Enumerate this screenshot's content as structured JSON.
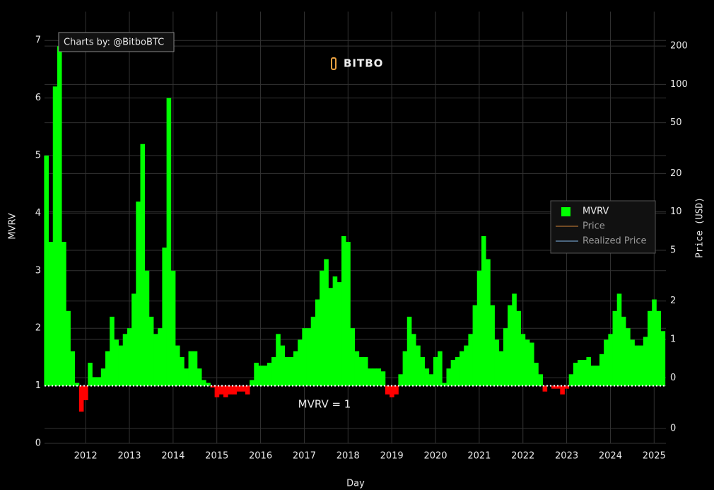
{
  "chart_data": {
    "type": "bar",
    "credit": "Charts by: @BitboBTC",
    "watermark": "BITBO",
    "xlabel": "Day",
    "ylabel": "MVRV",
    "y2label": "Price (USD)",
    "xlim": [
      2011.06,
      2025.27
    ],
    "xticks": [
      2012,
      2013,
      2014,
      2015,
      2016,
      2017,
      2018,
      2019,
      2020,
      2021,
      2022,
      2023,
      2024,
      2025
    ],
    "ylim": [
      0,
      7.5
    ],
    "yticks": [
      0,
      1,
      2,
      3,
      4,
      5,
      6,
      7
    ],
    "y2lim": [
      0.153,
      372
    ],
    "y2log": true,
    "y2ticks": [
      {
        "value": 0.2,
        "label": "0"
      },
      {
        "value": 0.5,
        "label": "0"
      },
      1,
      2,
      5,
      10,
      20,
      50,
      100,
      200
    ],
    "grid": true,
    "reference_line": {
      "value": 1,
      "label": "MVRV = 1"
    },
    "legend_position": "right",
    "x": [
      2011.1,
      2011.2,
      2011.3,
      2011.4,
      2011.5,
      2011.6,
      2011.7,
      2011.8,
      2011.9,
      2012.0,
      2012.1,
      2012.2,
      2012.3,
      2012.4,
      2012.5,
      2012.6,
      2012.7,
      2012.8,
      2012.9,
      2013.0,
      2013.1,
      2013.2,
      2013.3,
      2013.4,
      2013.5,
      2013.6,
      2013.7,
      2013.8,
      2013.9,
      2014.0,
      2014.1,
      2014.2,
      2014.3,
      2014.4,
      2014.5,
      2014.6,
      2014.7,
      2014.8,
      2014.9,
      2015.0,
      2015.1,
      2015.2,
      2015.3,
      2015.4,
      2015.5,
      2015.6,
      2015.7,
      2015.8,
      2015.9,
      2016.0,
      2016.1,
      2016.2,
      2016.3,
      2016.4,
      2016.5,
      2016.6,
      2016.7,
      2016.8,
      2016.9,
      2017.0,
      2017.1,
      2017.2,
      2017.3,
      2017.4,
      2017.5,
      2017.6,
      2017.7,
      2017.8,
      2017.9,
      2018.0,
      2018.1,
      2018.2,
      2018.3,
      2018.4,
      2018.5,
      2018.6,
      2018.7,
      2018.8,
      2018.9,
      2019.0,
      2019.1,
      2019.2,
      2019.3,
      2019.4,
      2019.5,
      2019.6,
      2019.7,
      2019.8,
      2019.9,
      2020.0,
      2020.1,
      2020.2,
      2020.3,
      2020.4,
      2020.5,
      2020.6,
      2020.7,
      2020.8,
      2020.9,
      2021.0,
      2021.1,
      2021.2,
      2021.3,
      2021.4,
      2021.5,
      2021.6,
      2021.7,
      2021.8,
      2021.9,
      2022.0,
      2022.1,
      2022.2,
      2022.3,
      2022.4,
      2022.5,
      2022.6,
      2022.7,
      2022.8,
      2022.9,
      2023.0,
      2023.1,
      2023.2,
      2023.3,
      2023.4,
      2023.5,
      2023.6,
      2023.7,
      2023.8,
      2023.9,
      2024.0,
      2024.1,
      2024.2,
      2024.3,
      2024.4,
      2024.5,
      2024.6,
      2024.7,
      2024.8,
      2024.9,
      2025.0,
      2025.1,
      2025.2
    ],
    "series": [
      {
        "name": "MVRV",
        "colors": {
          "above": "#00ff00",
          "below": "#ff0000"
        },
        "color": "#00ff00",
        "values": [
          5.0,
          3.5,
          6.2,
          6.9,
          3.5,
          2.3,
          1.6,
          1.05,
          0.55,
          0.75,
          1.4,
          1.15,
          1.15,
          1.3,
          1.6,
          2.2,
          1.8,
          1.7,
          1.9,
          2.0,
          2.6,
          4.2,
          5.2,
          3.0,
          2.2,
          1.9,
          2.0,
          3.4,
          6.0,
          3.0,
          1.7,
          1.5,
          1.3,
          1.6,
          1.6,
          1.3,
          1.1,
          1.05,
          0.97,
          0.8,
          0.85,
          0.8,
          0.85,
          0.85,
          0.9,
          0.9,
          0.85,
          1.1,
          1.4,
          1.35,
          1.35,
          1.4,
          1.5,
          1.9,
          1.7,
          1.5,
          1.5,
          1.6,
          1.8,
          2.0,
          2.0,
          2.2,
          2.5,
          3.0,
          3.2,
          2.7,
          2.9,
          2.8,
          3.6,
          3.5,
          2.0,
          1.6,
          1.5,
          1.5,
          1.3,
          1.3,
          1.3,
          1.25,
          0.85,
          0.8,
          0.85,
          1.2,
          1.6,
          2.2,
          1.9,
          1.7,
          1.5,
          1.3,
          1.2,
          1.5,
          1.6,
          1.05,
          1.3,
          1.45,
          1.5,
          1.6,
          1.7,
          1.9,
          2.4,
          3.0,
          3.6,
          3.2,
          2.4,
          1.8,
          1.6,
          2.0,
          2.4,
          2.6,
          2.3,
          1.9,
          1.8,
          1.75,
          1.4,
          1.2,
          0.9,
          1.0,
          0.95,
          0.95,
          0.85,
          0.95,
          1.2,
          1.4,
          1.45,
          1.45,
          1.5,
          1.35,
          1.35,
          1.55,
          1.8,
          1.9,
          2.3,
          2.6,
          2.2,
          2.0,
          1.8,
          1.7,
          1.7,
          1.85,
          2.3,
          2.5,
          2.3,
          1.95
        ]
      },
      {
        "name": "Price",
        "color": "#8b5a2b",
        "visible": "legendonly"
      },
      {
        "name": "Realized Price",
        "color": "#5a7a9a",
        "visible": "legendonly"
      }
    ]
  }
}
